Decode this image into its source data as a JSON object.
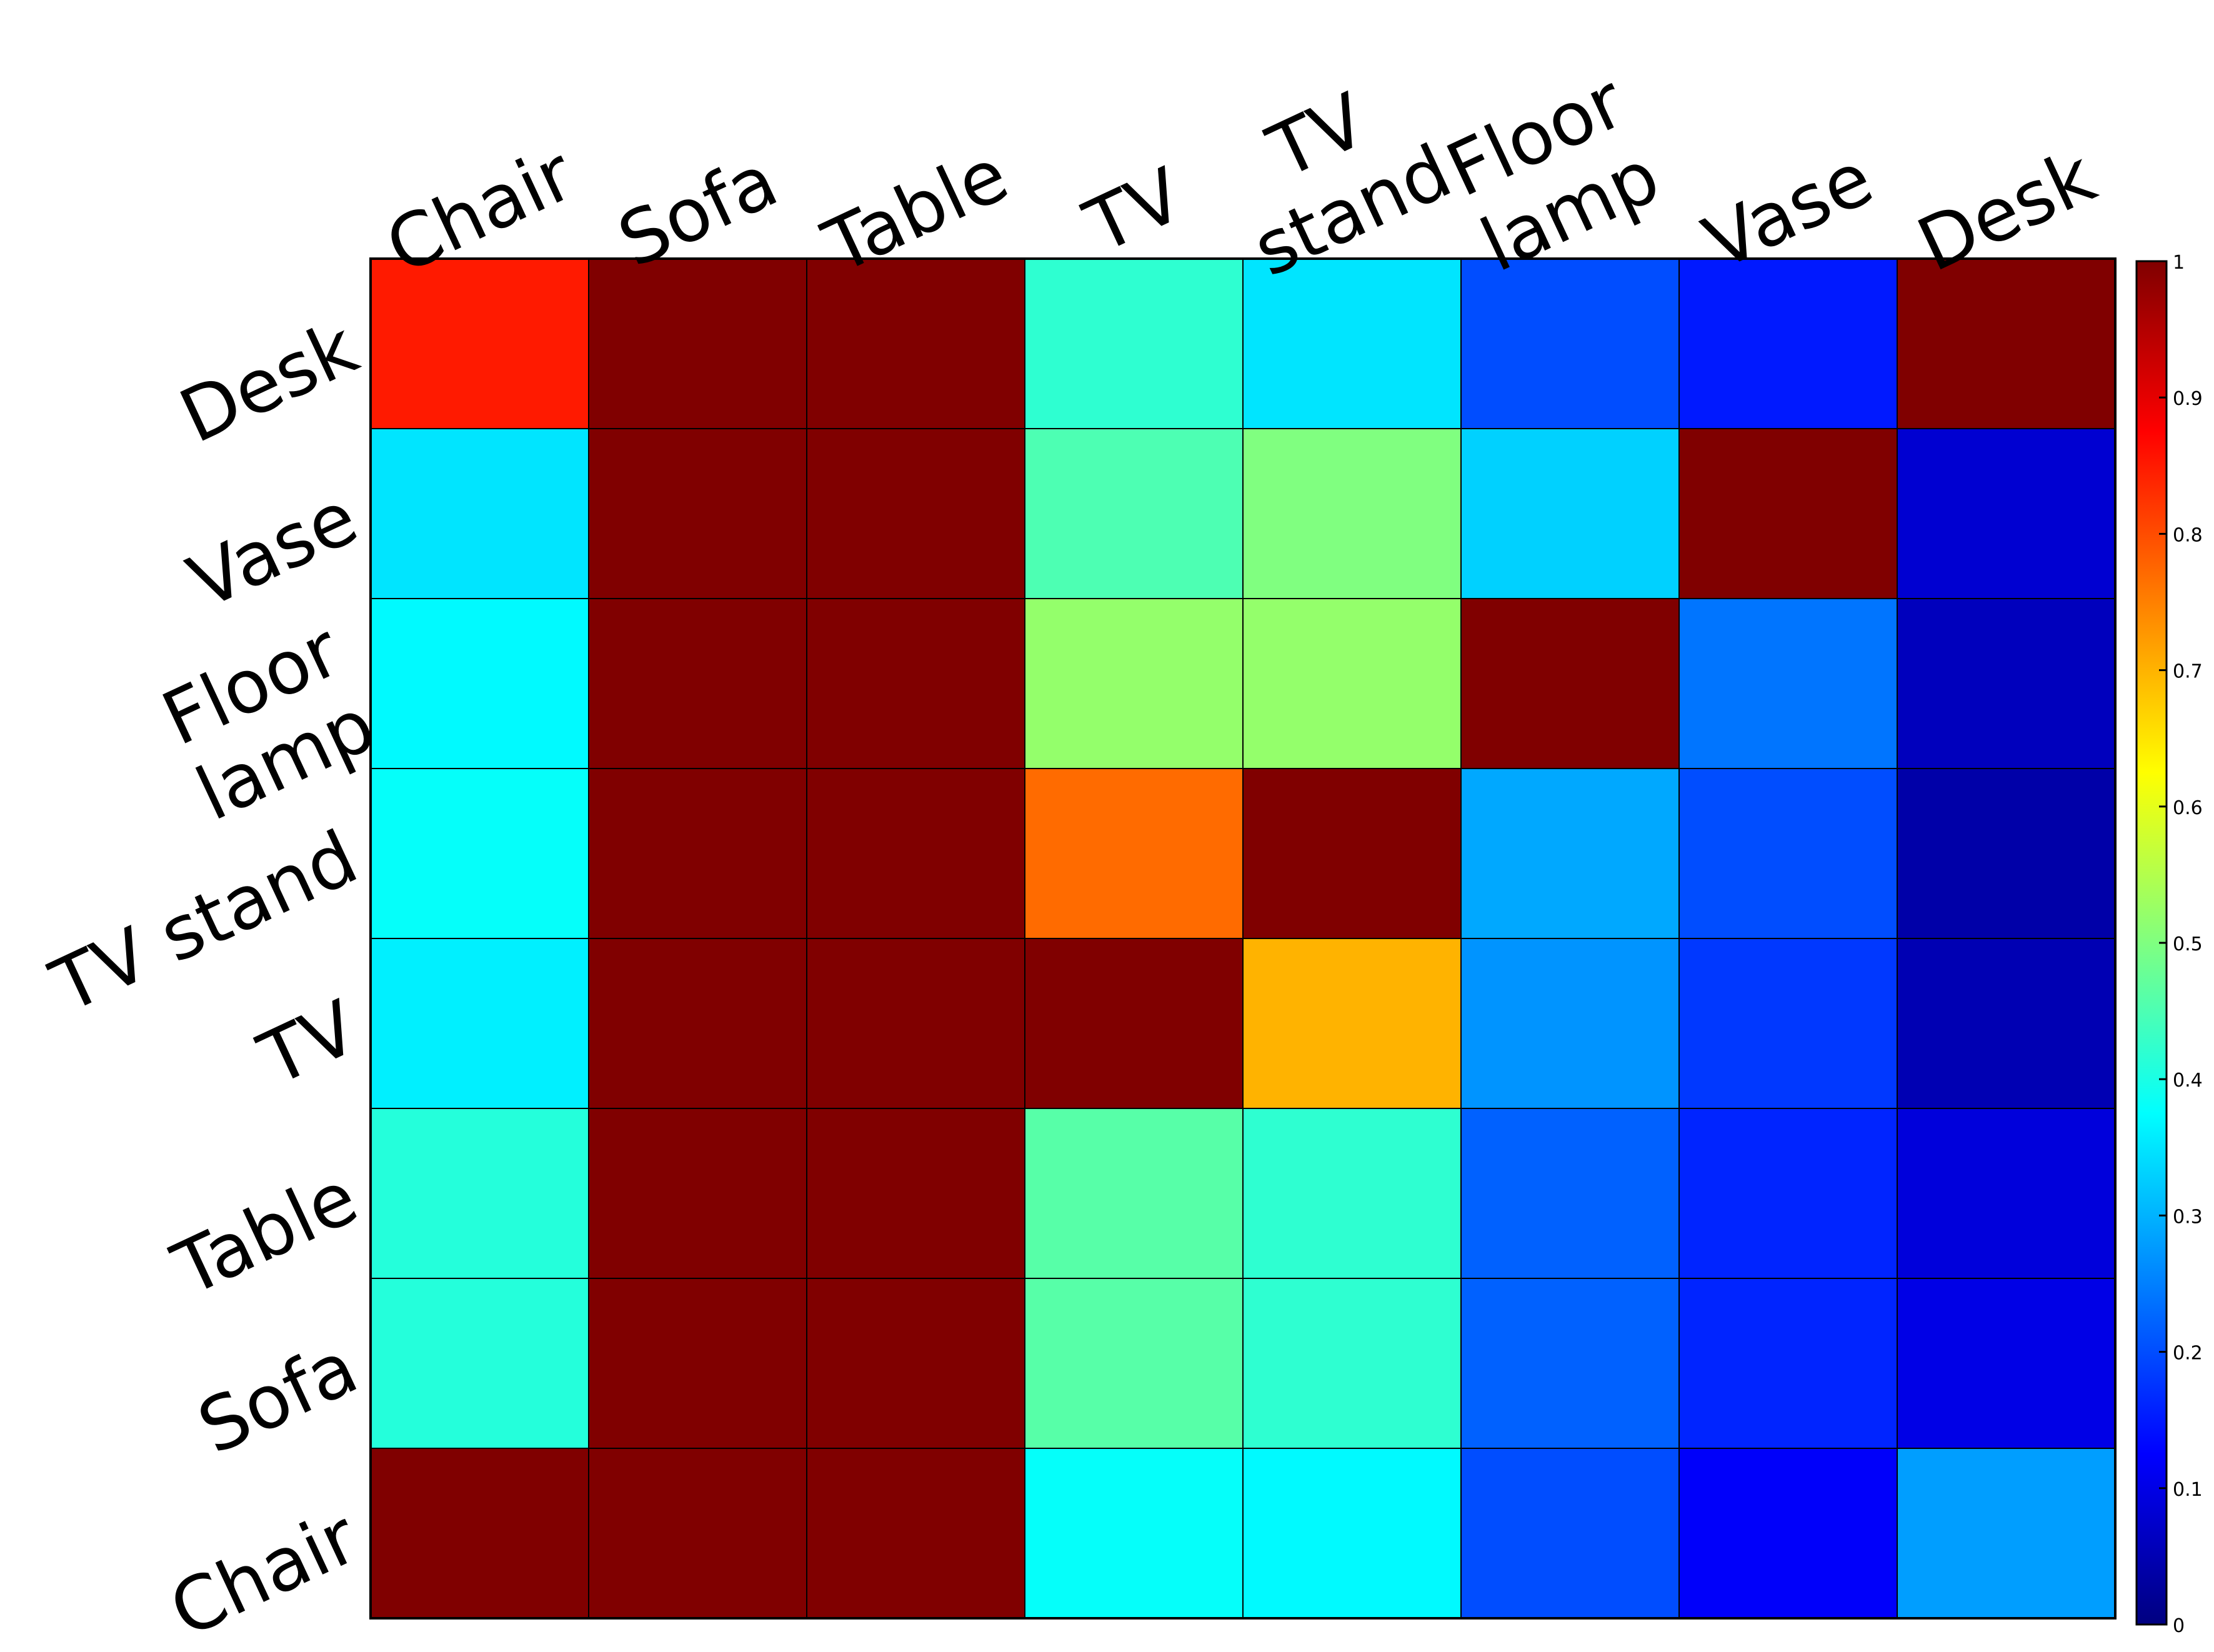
{
  "chart_data": {
    "type": "heatmap",
    "columns": [
      "Chair",
      "Sofa",
      "Table",
      "TV",
      "TV stand",
      "Floor lamp",
      "Vase",
      "Desk"
    ],
    "column_label_lines": [
      [
        "Chair"
      ],
      [
        "Sofa"
      ],
      [
        "Table"
      ],
      [
        "TV"
      ],
      [
        "TV",
        "stand"
      ],
      [
        "Floor",
        "lamp"
      ],
      [
        "Vase"
      ],
      [
        "Desk"
      ]
    ],
    "rows": [
      "Desk",
      "Vase",
      "Floor lamp",
      "TV stand",
      "TV",
      "Table",
      "Sofa",
      "Chair"
    ],
    "row_label_lines": [
      [
        "Desk"
      ],
      [
        "Vase"
      ],
      [
        "Floor",
        "lamp"
      ],
      [
        "TV stand"
      ],
      [
        "TV"
      ],
      [
        "Table"
      ],
      [
        "Sofa"
      ],
      [
        "Chair"
      ]
    ],
    "values": [
      [
        0.85,
        1.0,
        1.0,
        0.42,
        0.35,
        0.2,
        0.15,
        1.0
      ],
      [
        0.35,
        1.0,
        1.0,
        0.45,
        0.5,
        0.33,
        1.0,
        0.08
      ],
      [
        0.37,
        1.0,
        1.0,
        0.52,
        0.52,
        1.0,
        0.24,
        0.06
      ],
      [
        0.38,
        1.0,
        1.0,
        0.77,
        1.0,
        0.29,
        0.2,
        0.04
      ],
      [
        0.36,
        1.0,
        1.0,
        1.0,
        0.7,
        0.27,
        0.18,
        0.05
      ],
      [
        0.41,
        1.0,
        1.0,
        0.46,
        0.42,
        0.22,
        0.16,
        0.09
      ],
      [
        0.41,
        1.0,
        1.0,
        0.46,
        0.42,
        0.22,
        0.16,
        0.1
      ],
      [
        1.0,
        1.0,
        1.0,
        0.38,
        0.37,
        0.2,
        0.12,
        0.28
      ]
    ],
    "colormap": "jet",
    "colorbar": {
      "range": [
        0,
        1
      ],
      "ticks": [
        0,
        0.1,
        0.2,
        0.3,
        0.4,
        0.5,
        0.6,
        0.7,
        0.8,
        0.9,
        1
      ],
      "tick_labels": [
        "0",
        "0.1",
        "0.2",
        "0.3",
        "0.4",
        "0.5",
        "0.6",
        "0.7",
        "0.8",
        "0.9",
        "1"
      ],
      "position": "right"
    },
    "title": "",
    "xlabel": "",
    "ylabel": "",
    "grid": true
  }
}
